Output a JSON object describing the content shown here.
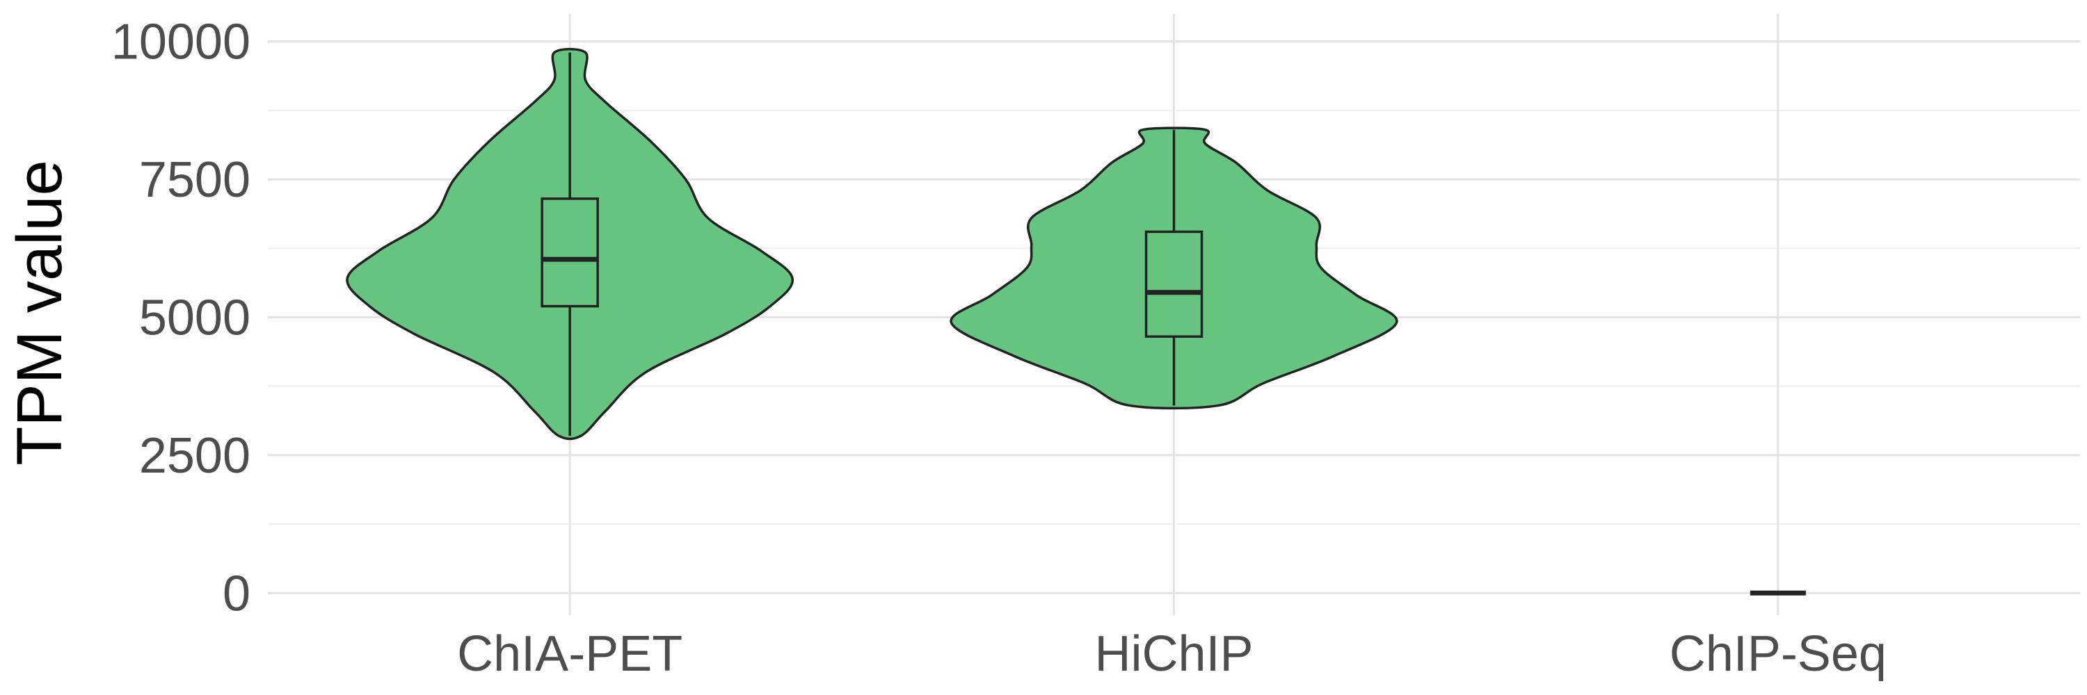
{
  "chart_data": {
    "type": "violin",
    "title": "",
    "xlabel": "",
    "ylabel": "TPM value",
    "ylim": [
      -400,
      10500
    ],
    "yticks": [
      0,
      2500,
      5000,
      7500,
      10000
    ],
    "grid": true,
    "legend": "none",
    "fill_color": "#65c47f",
    "outline_color": "#222222",
    "categories": [
      "ChIA-PET",
      "HiChIP",
      "ChIP-Seq"
    ],
    "series": [
      {
        "category": "ChIA-PET",
        "min": 2850,
        "q1": 5200,
        "median": 6050,
        "q3": 7150,
        "max": 9800,
        "density": [
          [
            2850,
            0.05
          ],
          [
            3300,
            0.16
          ],
          [
            4000,
            0.34
          ],
          [
            4700,
            0.7
          ],
          [
            5200,
            0.9
          ],
          [
            5700,
            1.0
          ],
          [
            6200,
            0.86
          ],
          [
            6800,
            0.62
          ],
          [
            7500,
            0.52
          ],
          [
            8200,
            0.36
          ],
          [
            8900,
            0.16
          ],
          [
            9300,
            0.07
          ],
          [
            9800,
            0.07
          ]
        ]
      },
      {
        "category": "HiChIP",
        "min": 3400,
        "q1": 4650,
        "median": 5450,
        "q3": 6550,
        "max": 8400,
        "density": [
          [
            3400,
            0.2
          ],
          [
            3800,
            0.4
          ],
          [
            4300,
            0.72
          ],
          [
            4900,
            1.0
          ],
          [
            5400,
            0.82
          ],
          [
            5900,
            0.66
          ],
          [
            6300,
            0.64
          ],
          [
            6800,
            0.64
          ],
          [
            7300,
            0.42
          ],
          [
            7800,
            0.28
          ],
          [
            8150,
            0.14
          ],
          [
            8400,
            0.14
          ]
        ]
      },
      {
        "category": "ChIP-Seq",
        "min": 0,
        "q1": 0,
        "median": 0,
        "q3": 0,
        "max": 0,
        "density": [
          [
            0,
            0.1
          ]
        ]
      }
    ]
  }
}
